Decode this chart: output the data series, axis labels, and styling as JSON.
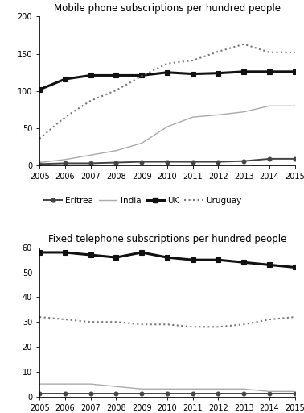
{
  "years": [
    2005,
    2006,
    2007,
    2008,
    2009,
    2010,
    2011,
    2012,
    2013,
    2014,
    2015
  ],
  "mobile": {
    "Eritrea": [
      2,
      3,
      3,
      4,
      5,
      5,
      5,
      5,
      6,
      9,
      9
    ],
    "India": [
      4,
      8,
      14,
      20,
      30,
      52,
      65,
      68,
      72,
      80,
      80
    ],
    "UK": [
      102,
      116,
      121,
      121,
      121,
      125,
      123,
      124,
      126,
      126,
      126
    ],
    "Uruguay": [
      36,
      65,
      87,
      101,
      120,
      137,
      141,
      153,
      163,
      152,
      152
    ]
  },
  "fixed": {
    "Eritrea": [
      1,
      1,
      1,
      1,
      1,
      1,
      1,
      1,
      1,
      1,
      1
    ],
    "India": [
      5,
      5,
      5,
      4,
      3,
      3,
      3,
      3,
      3,
      2,
      2
    ],
    "UK": [
      58,
      58,
      57,
      56,
      58,
      56,
      55,
      55,
      54,
      53,
      52
    ],
    "Uruguay": [
      32,
      31,
      30,
      30,
      29,
      29,
      28,
      28,
      29,
      31,
      32
    ]
  },
  "mobile_ylim": [
    0,
    200
  ],
  "mobile_yticks": [
    0,
    50,
    100,
    150,
    200
  ],
  "fixed_ylim": [
    0,
    60
  ],
  "fixed_yticks": [
    0,
    10,
    20,
    30,
    40,
    50,
    60
  ],
  "title_mobile": "Mobile phone subscriptions per hundred people",
  "title_fixed": "Fixed telephone subscriptions per hundred people",
  "line_styles": {
    "Eritrea": {
      "color": "#444444",
      "linestyle": "-",
      "marker": "o",
      "linewidth": 1.4,
      "markersize": 3.5,
      "markerfacecolor": "#444444"
    },
    "India": {
      "color": "#aaaaaa",
      "linestyle": "-",
      "marker": "none",
      "linewidth": 1.0,
      "markersize": 0,
      "markerfacecolor": "#aaaaaa"
    },
    "UK": {
      "color": "#111111",
      "linestyle": "-",
      "marker": "s",
      "linewidth": 2.2,
      "markersize": 4.5,
      "markerfacecolor": "#111111"
    },
    "Uruguay": {
      "color": "#777777",
      "linestyle": ":",
      "marker": "none",
      "linewidth": 1.5,
      "markersize": 0,
      "markerfacecolor": "#777777"
    }
  },
  "background_color": "#ffffff",
  "title_fontsize": 8.5,
  "tick_fontsize": 7,
  "legend_fontsize": 7.5
}
